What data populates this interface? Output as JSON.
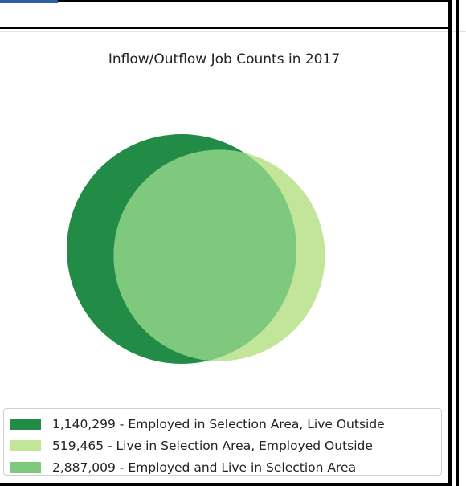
{
  "chart_data": {
    "type": "venn",
    "title": "Inflow/Outflow Job Counts in 2017",
    "series": [
      {
        "value_label": "1,140,299",
        "value": 1140299,
        "description": "Employed in Selection Area, Live Outside",
        "label": "1,140,299 - Employed in Selection Area, Live Outside",
        "color": "#228b45"
      },
      {
        "value_label": "519,465",
        "value": 519465,
        "description": "Live in Selection Area, Employed Outside",
        "label": "519,465 - Live in Selection Area, Employed Outside",
        "color": "#c2e699"
      },
      {
        "value_label": "2,887,009",
        "value": 2887009,
        "description": "Employed and Live in Selection Area",
        "label": "2,887,009 - Employed and Live in Selection Area",
        "color": "#7fc97f"
      }
    ],
    "legend_position": "bottom"
  }
}
